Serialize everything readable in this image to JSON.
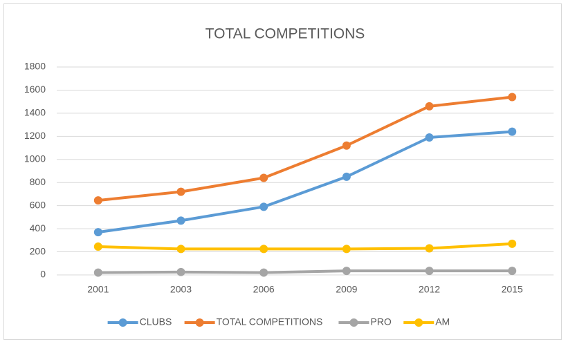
{
  "chart_data": {
    "type": "line",
    "title": "TOTAL COMPETITIONS",
    "categories": [
      "2001",
      "2003",
      "2006",
      "2009",
      "2012",
      "2015"
    ],
    "series": [
      {
        "name": "CLUBS",
        "color": "#5b9bd5",
        "values": [
          370,
          470,
          590,
          850,
          1190,
          1240
        ]
      },
      {
        "name": "TOTAL COMPETITIONS",
        "color": "#ed7d31",
        "values": [
          645,
          720,
          840,
          1120,
          1460,
          1540
        ]
      },
      {
        "name": "PRO",
        "color": "#a5a5a5",
        "values": [
          20,
          25,
          20,
          35,
          35,
          35
        ]
      },
      {
        "name": "AM",
        "color": "#ffc000",
        "values": [
          245,
          225,
          225,
          225,
          230,
          270
        ]
      }
    ],
    "ylim": [
      0,
      1800
    ],
    "yticks": [
      0,
      200,
      400,
      600,
      800,
      1000,
      1200,
      1400,
      1600,
      1800
    ],
    "grid": true,
    "legend": "bottom"
  }
}
